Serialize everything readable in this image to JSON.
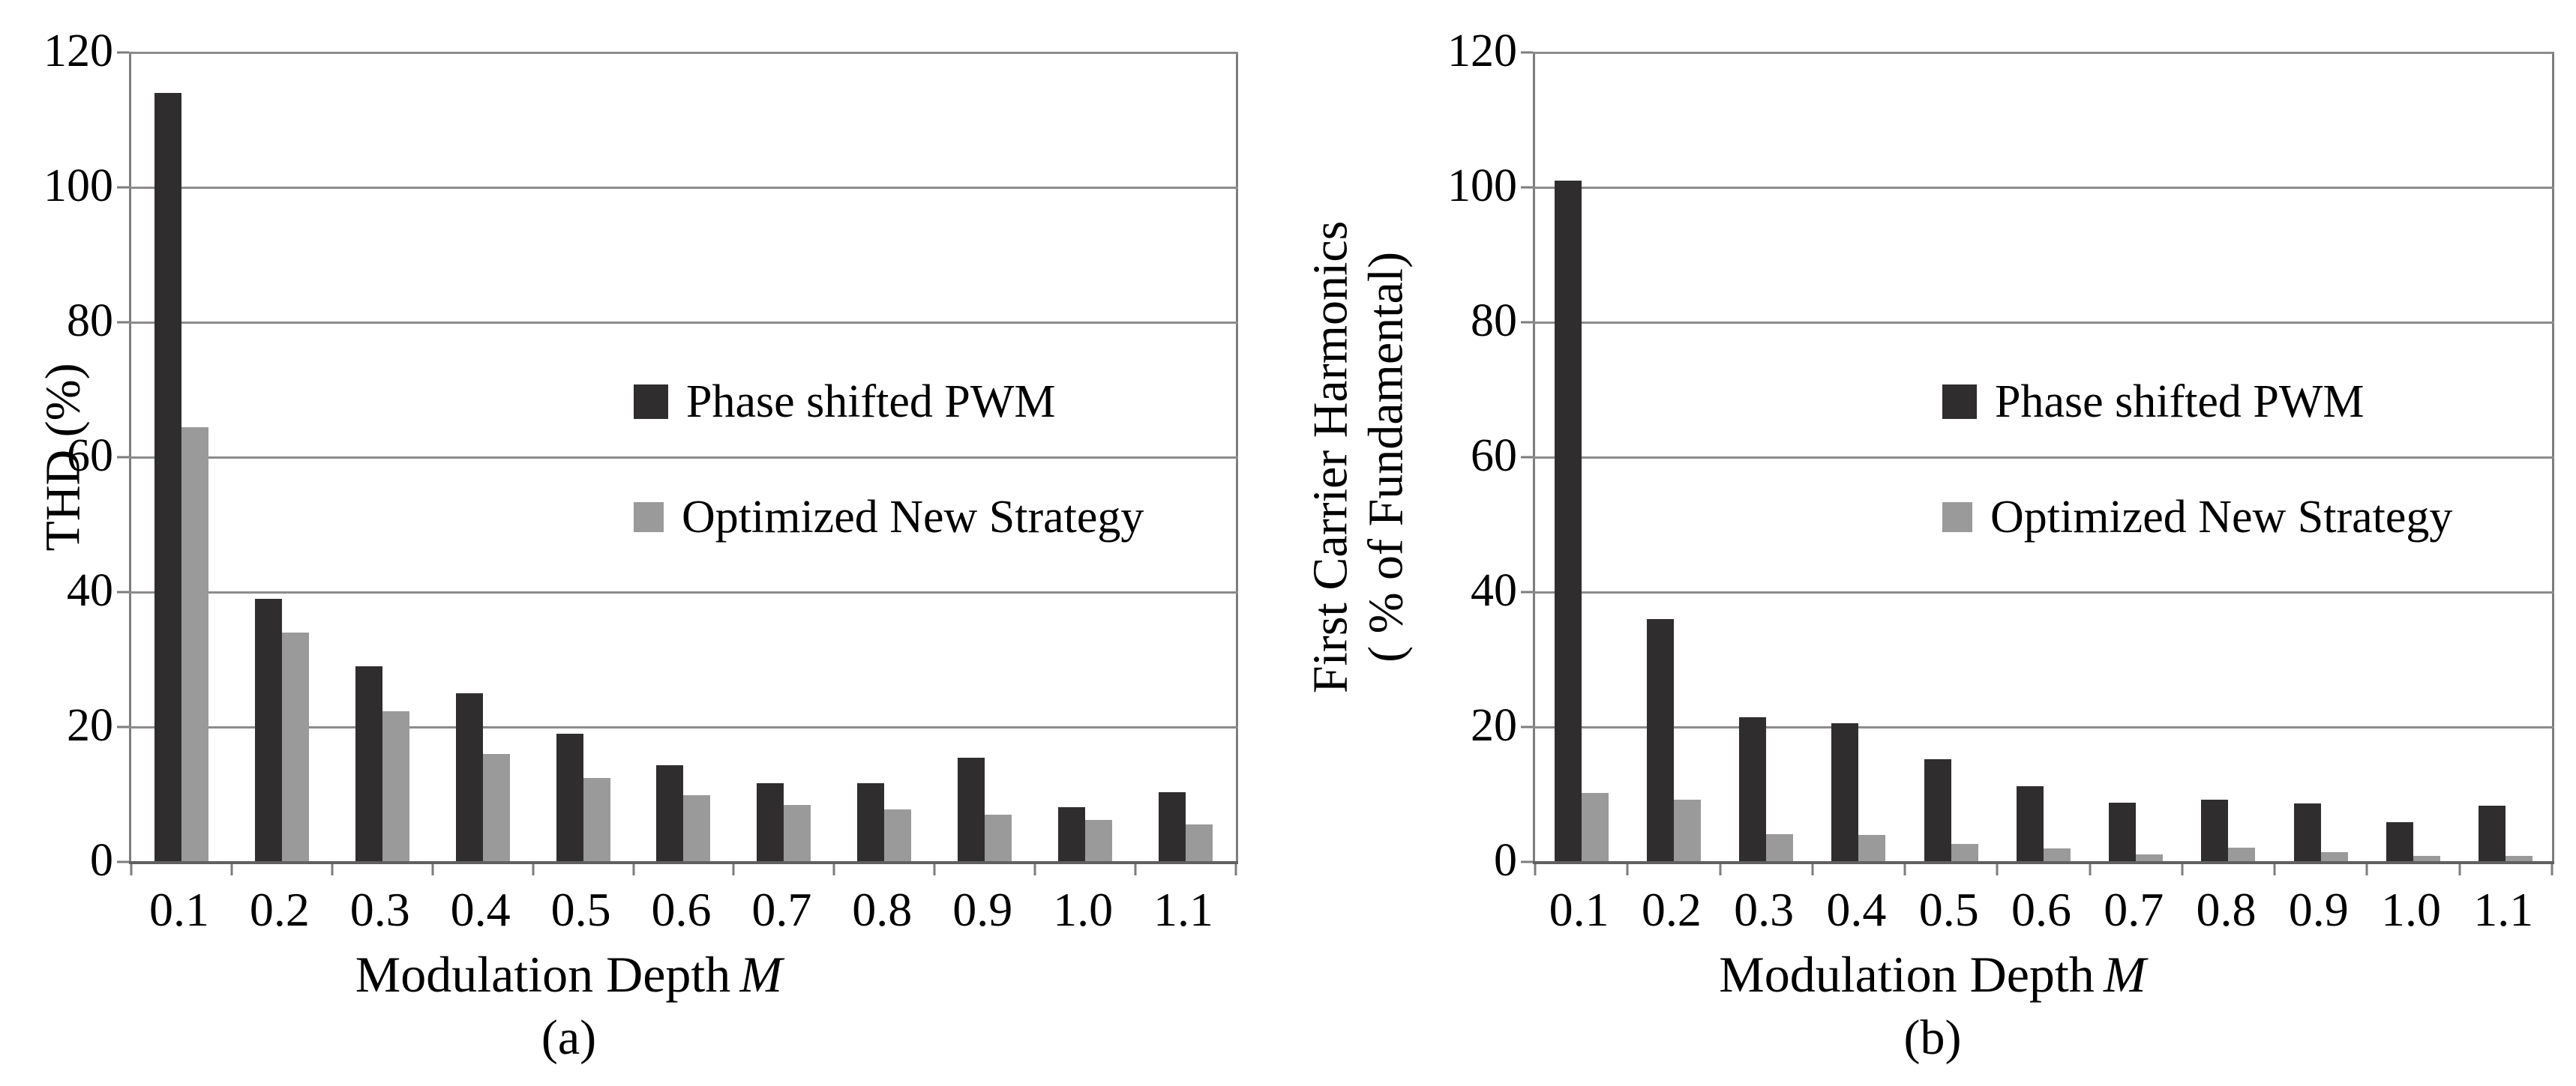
{
  "page": {
    "background": "#ffffff"
  },
  "colors": {
    "series_dark": "#302d2f",
    "series_gray": "#9a9a9a",
    "gridline": "#8c8c8c",
    "axis": "#7d7d7d"
  },
  "chart_data": [
    {
      "id": "a",
      "type": "bar",
      "caption": "(a)",
      "ylabel_lines": [
        "THD (%)"
      ],
      "xlabel_prefix": "Modulation Depth",
      "xlabel_var": "M",
      "categories": [
        "0.1",
        "0.2",
        "0.3",
        "0.4",
        "0.5",
        "0.6",
        "0.7",
        "0.8",
        "0.9",
        "1.0",
        "1.1"
      ],
      "yticks": [
        120,
        100,
        80,
        60,
        40,
        20,
        0
      ],
      "ylim": [
        0,
        120
      ],
      "grid": true,
      "legend_position": "inside-center-right",
      "series": [
        {
          "name": "Phase shifted PWM",
          "color": "#302d2f",
          "values": [
            114,
            39,
            29,
            25,
            19,
            14.3,
            11.7,
            11.7,
            15.4,
            8.1,
            10.3
          ]
        },
        {
          "name": "Optimized New Strategy",
          "color": "#9a9a9a",
          "values": [
            64.5,
            34,
            22.3,
            16,
            12.4,
            9.9,
            8.5,
            7.8,
            7.0,
            6.2,
            5.6
          ]
        }
      ]
    },
    {
      "id": "b",
      "type": "bar",
      "caption": "(b)",
      "ylabel_lines": [
        "First Carrier Harmonics",
        "( % of Fundamental)"
      ],
      "xlabel_prefix": "Modulation Depth",
      "xlabel_var": "M",
      "categories": [
        "0.1",
        "0.2",
        "0.3",
        "0.4",
        "0.5",
        "0.6",
        "0.7",
        "0.8",
        "0.9",
        "1.0",
        "1.1"
      ],
      "yticks": [
        120,
        100,
        80,
        60,
        40,
        20,
        0
      ],
      "ylim": [
        0,
        120
      ],
      "grid": true,
      "legend_position": "inside-center-right",
      "series": [
        {
          "name": "Phase shifted PWM",
          "color": "#302d2f",
          "values": [
            101,
            36,
            21.4,
            20.6,
            15.2,
            11.2,
            8.8,
            9.2,
            8.7,
            5.9,
            8.3
          ]
        },
        {
          "name": "Optimized New Strategy",
          "color": "#9a9a9a",
          "values": [
            10.2,
            9.2,
            4.1,
            4.0,
            2.7,
            2.0,
            1.1,
            2.1,
            1.5,
            0.9,
            0.9
          ]
        }
      ]
    }
  ]
}
